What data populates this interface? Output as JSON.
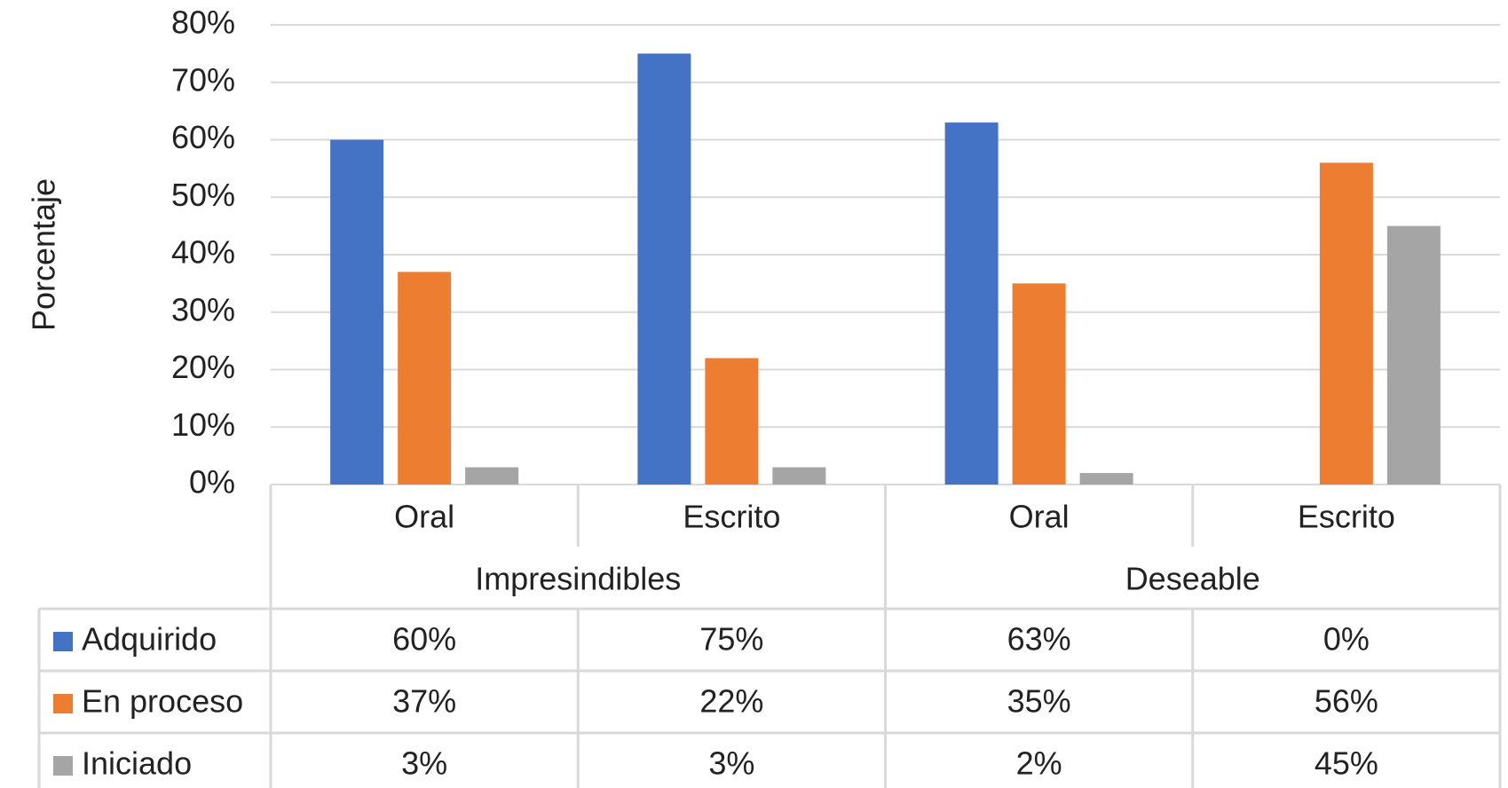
{
  "chart_data": {
    "type": "bar",
    "ylabel": "Porcentaje",
    "ylim": [
      0,
      80
    ],
    "yticks": [
      "0%",
      "10%",
      "20%",
      "30%",
      "40%",
      "50%",
      "60%",
      "70%",
      "80%"
    ],
    "grid": true,
    "legend_placement": "data-table",
    "categories": [
      "Oral",
      "Escrito",
      "Oral",
      "Escrito"
    ],
    "groups": [
      {
        "label": "Impresindibles",
        "span": 2
      },
      {
        "label": "Deseable",
        "span": 2
      }
    ],
    "series": [
      {
        "name": "Adquirido",
        "color": "#4472C4",
        "values": [
          60,
          75,
          63,
          0
        ],
        "labels": [
          "60%",
          "75%",
          "63%",
          "0%"
        ]
      },
      {
        "name": "En proceso",
        "color": "#ED7D31",
        "values": [
          37,
          22,
          35,
          56
        ],
        "labels": [
          "37%",
          "22%",
          "35%",
          "56%"
        ]
      },
      {
        "name": "Iniciado",
        "color": "#A5A5A5",
        "values": [
          3,
          3,
          2,
          45
        ],
        "labels": [
          "3%",
          "3%",
          "2%",
          "45%"
        ]
      }
    ]
  }
}
